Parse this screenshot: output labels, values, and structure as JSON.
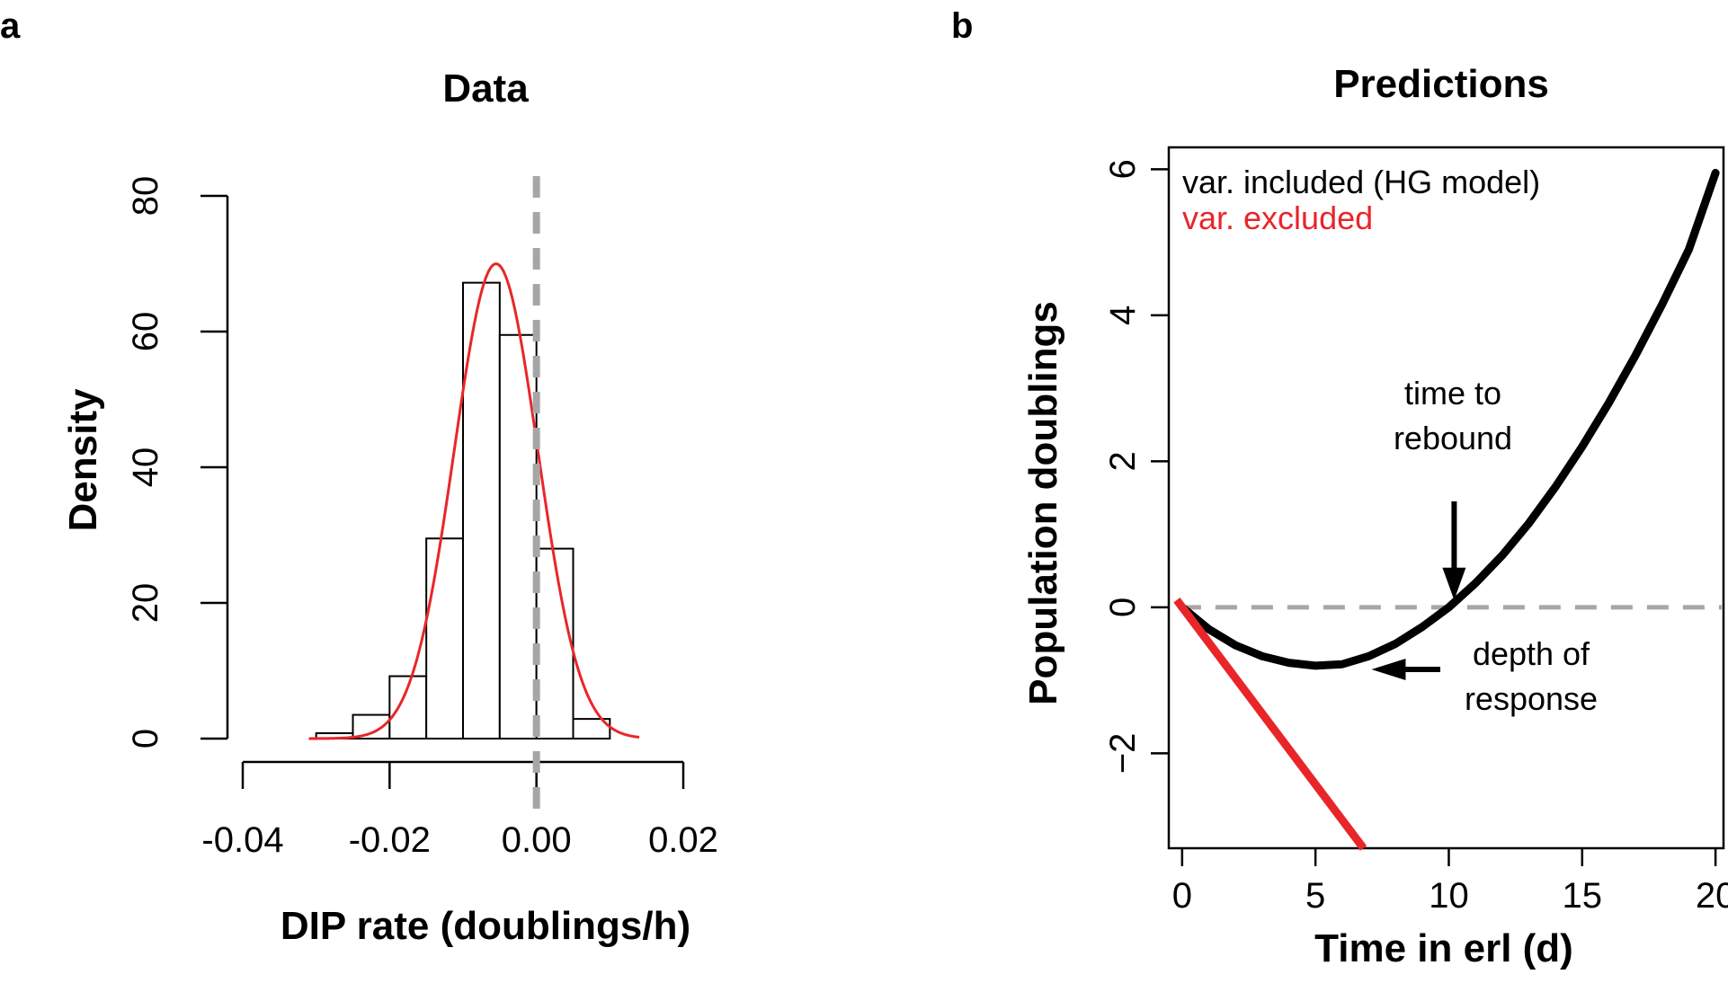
{
  "chart_data": [
    {
      "panel": "a",
      "type": "bar",
      "title": "Data",
      "xlabel": "DIP rate (doublings/h)",
      "ylabel": "Density",
      "xlim": [
        -0.04,
        0.02
      ],
      "ylim": [
        0,
        80
      ],
      "x_ticks": [
        -0.04,
        -0.02,
        0.0,
        0.02
      ],
      "x_tick_labels": [
        "-0.04",
        "-0.02",
        "0.00",
        "0.02"
      ],
      "y_ticks": [
        0,
        20,
        40,
        60,
        80
      ],
      "y_tick_labels": [
        "0",
        "20",
        "40",
        "60",
        "80"
      ],
      "bin_width": 0.005,
      "bins": [
        {
          "x0": -0.03,
          "x1": -0.025,
          "value": 0.8
        },
        {
          "x0": -0.025,
          "x1": -0.02,
          "value": 3.5
        },
        {
          "x0": -0.02,
          "x1": -0.015,
          "value": 9.2
        },
        {
          "x0": -0.015,
          "x1": -0.01,
          "value": 29.5
        },
        {
          "x0": -0.01,
          "x1": -0.005,
          "value": 67.2
        },
        {
          "x0": -0.005,
          "x1": 0.0,
          "value": 59.5
        },
        {
          "x0": 0.0,
          "x1": 0.005,
          "value": 28.0
        },
        {
          "x0": 0.005,
          "x1": 0.01,
          "value": 2.9
        }
      ],
      "fit_curve": {
        "type": "normal",
        "mean": -0.0055,
        "sd": 0.0057,
        "x_range": [
          -0.031,
          0.014
        ],
        "color": "#e8262a"
      },
      "reference_line": {
        "x": 0.0,
        "style": "dashed",
        "color": "#a6a6a6"
      },
      "grid": false
    },
    {
      "panel": "b",
      "type": "line",
      "title": "Predictions",
      "xlabel": "Time in erl (d)",
      "ylabel": "Population doublings",
      "xlim": [
        -0.5,
        20.3
      ],
      "ylim": [
        -3.3,
        6.3
      ],
      "x_ticks": [
        0,
        5,
        10,
        15,
        20
      ],
      "x_tick_labels": [
        "0",
        "5",
        "10",
        "15",
        "20"
      ],
      "y_ticks": [
        -2,
        0,
        2,
        4,
        6
      ],
      "y_tick_labels": [
        "−2",
        "0",
        "2",
        "4",
        "6"
      ],
      "series": [
        {
          "name": "var. included (HG model)",
          "color": "#000000",
          "x": [
            0,
            1,
            2,
            3,
            4,
            5,
            6,
            7,
            8,
            9,
            10,
            11,
            12,
            13,
            14,
            15,
            16,
            17,
            18,
            19,
            20
          ],
          "y": [
            0,
            -0.3,
            -0.52,
            -0.67,
            -0.76,
            -0.8,
            -0.78,
            -0.67,
            -0.5,
            -0.27,
            0.0,
            0.33,
            0.71,
            1.15,
            1.65,
            2.2,
            2.8,
            3.45,
            4.15,
            4.9,
            5.95
          ]
        },
        {
          "name": "var. excluded",
          "color": "#e8262a",
          "x": [
            -0.2,
            6.8
          ],
          "y": [
            0.1,
            -3.3
          ]
        }
      ],
      "reference_line": {
        "y": 0,
        "style": "dashed",
        "color": "#a6a6a6"
      },
      "annotations": [
        {
          "text_lines": [
            "time to",
            "rebound"
          ],
          "points_to": {
            "x": 10.2,
            "y": 0.1
          }
        },
        {
          "text_lines": [
            "depth of",
            "response"
          ],
          "points_to": {
            "x": 7.1,
            "y": -0.85
          }
        }
      ],
      "legend_position": "top-left",
      "grid": false
    }
  ]
}
